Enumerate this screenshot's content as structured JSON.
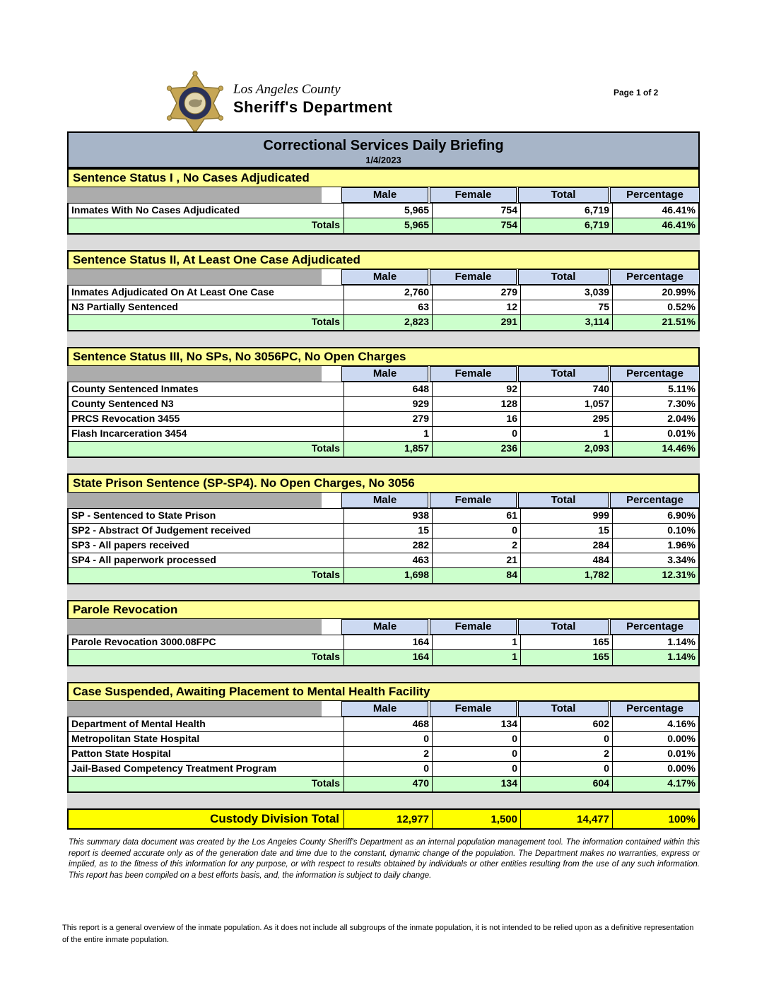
{
  "header": {
    "logo_line1": "Los Angeles County",
    "logo_line2": "Sheriff's Department",
    "page_indicator": "Page 1 of 2"
  },
  "banner": {
    "title": "Correctional Services Daily Briefing",
    "date": "1/4/2023"
  },
  "columns": [
    "Male",
    "Female",
    "Total",
    "Percentage"
  ],
  "totals_label": "Totals",
  "sections": [
    {
      "title": "Sentence Status I , No Cases Adjudicated",
      "rows": [
        {
          "label": "Inmates With No Cases Adjudicated",
          "male": "5,965",
          "female": "754",
          "total": "6,719",
          "pct": "46.41%"
        }
      ],
      "totals": {
        "male": "5,965",
        "female": "754",
        "total": "6,719",
        "pct": "46.41%"
      }
    },
    {
      "title": "Sentence Status II, At Least One Case Adjudicated",
      "rows": [
        {
          "label": "Inmates Adjudicated On At Least One Case",
          "male": "2,760",
          "female": "279",
          "total": "3,039",
          "pct": "20.99%"
        },
        {
          "label": "N3 Partially Sentenced",
          "male": "63",
          "female": "12",
          "total": "75",
          "pct": "0.52%"
        }
      ],
      "totals": {
        "male": "2,823",
        "female": "291",
        "total": "3,114",
        "pct": "21.51%"
      }
    },
    {
      "title": "Sentence Status III, No SPs, No 3056PC, No Open Charges",
      "rows": [
        {
          "label": "County Sentenced Inmates",
          "male": "648",
          "female": "92",
          "total": "740",
          "pct": "5.11%"
        },
        {
          "label": "County Sentenced N3",
          "male": "929",
          "female": "128",
          "total": "1,057",
          "pct": "7.30%"
        },
        {
          "label": "PRCS Revocation 3455",
          "male": "279",
          "female": "16",
          "total": "295",
          "pct": "2.04%"
        },
        {
          "label": "Flash Incarceration 3454",
          "male": "1",
          "female": "0",
          "total": "1",
          "pct": "0.01%"
        }
      ],
      "totals": {
        "male": "1,857",
        "female": "236",
        "total": "2,093",
        "pct": "14.46%"
      }
    },
    {
      "title": "State Prison Sentence (SP-SP4). No Open Charges, No 3056",
      "rows": [
        {
          "label": "SP - Sentenced to State Prison",
          "male": "938",
          "female": "61",
          "total": "999",
          "pct": "6.90%"
        },
        {
          "label": "SP2 - Abstract Of Judgement received",
          "male": "15",
          "female": "0",
          "total": "15",
          "pct": "0.10%"
        },
        {
          "label": "SP3 - All papers received",
          "male": "282",
          "female": "2",
          "total": "284",
          "pct": "1.96%"
        },
        {
          "label": "SP4 - All paperwork processed",
          "male": "463",
          "female": "21",
          "total": "484",
          "pct": "3.34%"
        }
      ],
      "totals": {
        "male": "1,698",
        "female": "84",
        "total": "1,782",
        "pct": "12.31%"
      }
    },
    {
      "title": "Parole Revocation",
      "rows": [
        {
          "label": "Parole Revocation 3000.08FPC",
          "male": "164",
          "female": "1",
          "total": "165",
          "pct": "1.14%"
        }
      ],
      "totals": {
        "male": "164",
        "female": "1",
        "total": "165",
        "pct": "1.14%"
      }
    },
    {
      "title": "Case Suspended, Awaiting Placement to Mental Health Facility",
      "rows": [
        {
          "label": "Department of Mental Health",
          "male": "468",
          "female": "134",
          "total": "602",
          "pct": "4.16%"
        },
        {
          "label": "Metropolitan State Hospital",
          "male": "0",
          "female": "0",
          "total": "0",
          "pct": "0.00%"
        },
        {
          "label": "Patton State Hospital",
          "male": "2",
          "female": "0",
          "total": "2",
          "pct": "0.01%"
        },
        {
          "label": "Jail-Based Competency Treatment Program",
          "male": "0",
          "female": "0",
          "total": "0",
          "pct": "0.00%"
        }
      ],
      "totals": {
        "male": "470",
        "female": "134",
        "total": "604",
        "pct": "4.17%"
      }
    }
  ],
  "grand_total": {
    "label": "Custody Division Total",
    "male": "12,977",
    "female": "1,500",
    "total": "14,477",
    "pct": "100%"
  },
  "footer": {
    "disclaimer": "This summary data document was created by the Los Angeles County Sheriff's Department as an internal population management tool.  The information contained within this report is deemed accurate only as of the generation date and time due to the constant, dynamic change of the population.  The Department makes no warranties, express or implied, as to the fitness of this information for any purpose, or with respect to results obtained by individuals or other entities resulting from the use of any such information.  This report has been compiled on a best efforts basis, and, the information is subject to daily change.",
    "note": "This report is a general overview of the inmate population.  As it does not include all subgroups of the inmate population, it is not intended to be relied upon as a definitive representation of the entire inmate population."
  },
  "colors": {
    "banner": "#A7B5C8",
    "section_header": "#FFFF99",
    "grand_total_row": "#FFFF00",
    "column_header": "#CCD9F1",
    "totals_row": "#CCFFCC",
    "corner_cell": "#ACACAC",
    "spacer": "#DBDBDB"
  }
}
